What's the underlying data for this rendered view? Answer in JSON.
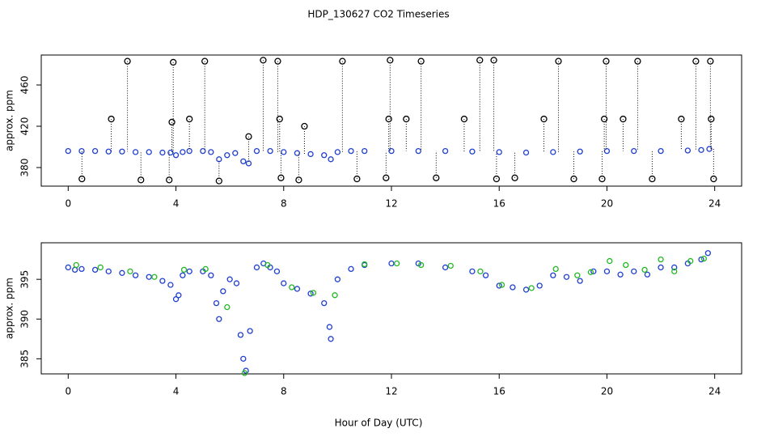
{
  "title": "HDP_130627  CO2 Timeseries",
  "xlabel": "Hour of Day (UTC)",
  "chart_data": [
    {
      "type": "scatter",
      "ylabel": "approx. ppm",
      "xlim": [
        -1,
        25
      ],
      "xticks": [
        0,
        4,
        8,
        12,
        16,
        20,
        24
      ],
      "ylim": [
        362,
        489
      ],
      "yticks": [
        380,
        420,
        460
      ],
      "series": [
        {
          "color": "#1f3fd0",
          "x": [
            0,
            0.5,
            1,
            1.5,
            2,
            2.5,
            3,
            3.5,
            3.8,
            4.0,
            4.25,
            4.5,
            5,
            5.3,
            5.6,
            5.9,
            6.2,
            6.5,
            6.7,
            7.0,
            7.5,
            8,
            8.5,
            9,
            9.5,
            9.75,
            10,
            10.5,
            11,
            12,
            13,
            14,
            15,
            16,
            17,
            18,
            19,
            20,
            21,
            22,
            23,
            23.5,
            23.8
          ],
          "values": [
            396,
            396,
            396,
            395.5,
            395.5,
            395,
            395,
            394.5,
            394.5,
            392,
            395,
            396,
            396,
            395,
            388,
            392,
            394,
            386,
            384,
            396,
            396,
            395,
            394,
            393,
            392,
            388,
            395,
            396,
            396,
            396,
            396,
            396,
            395.5,
            395,
            394.5,
            395,
            395.5,
            396,
            396,
            396,
            396.5,
            397,
            398
          ]
        },
        {
          "color": "#000000",
          "x": [
            0.51,
            1.6,
            2.2,
            2.7,
            3.75,
            3.85,
            3.9,
            4.5,
            5.07,
            5.6,
            6.7,
            7.24,
            7.78,
            7.85,
            7.9,
            8.56,
            8.77,
            10.18,
            10.72,
            11.8,
            11.9,
            11.95,
            12.55,
            13.1,
            13.66,
            14.7,
            15.28,
            15.8,
            15.9,
            16.58,
            17.66,
            18.2,
            18.77,
            19.82,
            19.9,
            19.97,
            20.6,
            21.14,
            21.68,
            22.76,
            23.3,
            23.84,
            23.87,
            23.96
          ],
          "values": [
            369,
            427,
            483,
            368,
            368,
            424,
            482,
            427,
            483,
            367,
            410,
            484,
            483,
            427,
            370,
            368,
            420,
            483,
            369,
            370,
            427,
            484,
            427,
            483,
            370,
            427,
            484,
            484,
            369,
            370,
            427,
            483,
            369,
            369,
            427,
            483,
            427,
            483,
            369,
            427,
            483,
            483,
            427,
            369
          ]
        }
      ]
    },
    {
      "type": "scatter",
      "ylabel": "approx. ppm",
      "xlim": [
        -1,
        25
      ],
      "xticks": [
        0,
        4,
        8,
        12,
        16,
        20,
        24
      ],
      "ylim": [
        383.1,
        399.6
      ],
      "yticks": [
        385,
        390,
        395
      ],
      "series": [
        {
          "color": "#1f3fd0",
          "x": [
            0,
            0.25,
            0.5,
            1,
            1.5,
            2,
            2.5,
            3,
            3.5,
            3.8,
            4.0,
            4.1,
            4.25,
            4.5,
            5,
            5.3,
            5.5,
            5.6,
            5.75,
            6.0,
            6.25,
            6.4,
            6.5,
            6.6,
            6.75,
            7.0,
            7.25,
            7.5,
            7.75,
            8.0,
            8.5,
            9.0,
            9.5,
            9.7,
            9.75,
            10.0,
            10.5,
            11,
            12,
            13,
            14,
            15,
            15.5,
            16,
            16.5,
            17,
            17.5,
            18,
            18.5,
            19,
            19.5,
            20,
            20.5,
            21,
            21.5,
            22,
            22.5,
            23,
            23.5,
            23.75
          ],
          "values": [
            396.5,
            396.2,
            396.3,
            396.2,
            396,
            395.8,
            395.5,
            395.3,
            394.8,
            394.3,
            392.5,
            393,
            395.5,
            396,
            396,
            395.5,
            392,
            390,
            393.5,
            395,
            394.5,
            388,
            385,
            383.5,
            388.5,
            396.5,
            397,
            396.5,
            396,
            394.5,
            393.8,
            393.2,
            392,
            389,
            387.5,
            395,
            396.3,
            396.8,
            397,
            397,
            396.5,
            396,
            395.5,
            394.2,
            394,
            393.7,
            394.2,
            395.5,
            395.3,
            394.8,
            396,
            396,
            395.6,
            396,
            395.6,
            396.5,
            396.5,
            397,
            397.5,
            398.3
          ]
        },
        {
          "color": "#22b822",
          "x": [
            0.3,
            1.2,
            2.3,
            3.2,
            4.3,
            5.1,
            5.9,
            6.55,
            7.4,
            8.3,
            9.1,
            9.9,
            11,
            12.2,
            13.1,
            14.2,
            15.3,
            16.1,
            17.2,
            18.1,
            18.9,
            19.4,
            20.1,
            20.7,
            21.4,
            22,
            22.5,
            23.1,
            23.6
          ],
          "values": [
            396.8,
            396.5,
            396,
            395.3,
            396.2,
            396.3,
            391.5,
            383.2,
            396.8,
            394,
            393.3,
            393,
            396.9,
            397,
            396.8,
            396.7,
            396,
            394.3,
            393.9,
            396.3,
            395.5,
            395.9,
            397.3,
            396.8,
            396.2,
            397.5,
            396,
            397.3,
            397.6
          ]
        }
      ]
    }
  ]
}
